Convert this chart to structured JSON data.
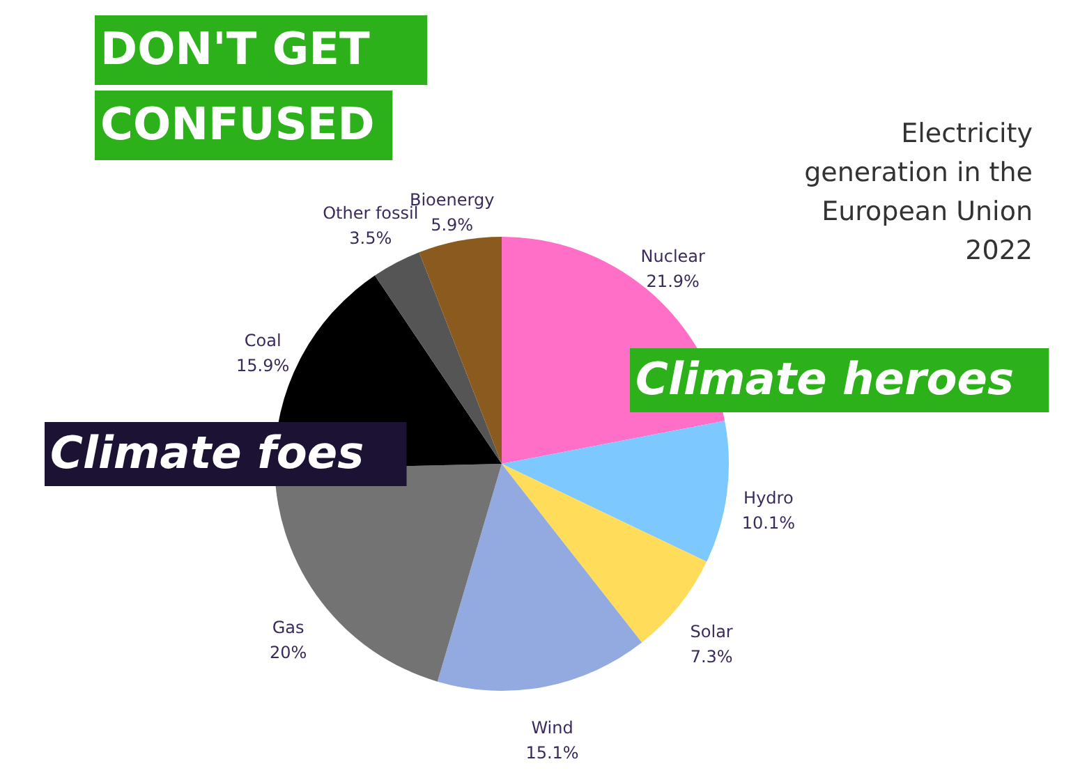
{
  "chart_data": {
    "type": "pie",
    "title": "DON'T GET CONFUSED",
    "subtitle": "Electricity generation in the European Union 2022",
    "annotations": [
      "Climate heroes",
      "Climate foes"
    ],
    "categories": [
      "Nuclear",
      "Hydro",
      "Solar",
      "Wind",
      "Gas",
      "Coal",
      "Other fossil",
      "Bioenergy"
    ],
    "values": [
      21.9,
      10.1,
      7.3,
      15.1,
      20,
      15.9,
      3.5,
      5.9
    ],
    "value_labels": [
      "21.9%",
      "10.1%",
      "7.3%",
      "15.1%",
      "20%",
      "15.9%",
      "3.5%",
      "5.9%"
    ],
    "colors": [
      "#ff6ec7",
      "#7cc8ff",
      "#ffdd5a",
      "#92aadf",
      "#737373",
      "#000000",
      "#555555",
      "#8a5a1e"
    ]
  }
}
